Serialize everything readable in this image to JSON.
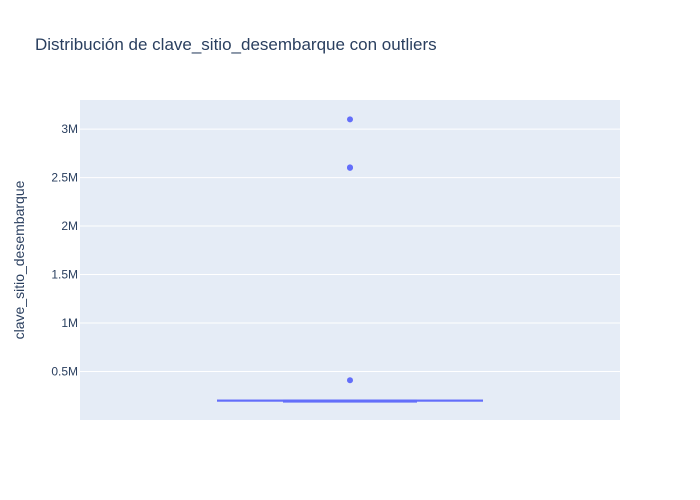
{
  "chart_data": {
    "type": "box",
    "title": "Distribución de clave_sitio_desembarque con outliers",
    "xlabel": "",
    "ylabel": "clave_sitio_desembarque",
    "ylim": [
      0,
      3300000
    ],
    "yticks": [
      {
        "value": 500000,
        "label": "0.5M"
      },
      {
        "value": 1000000,
        "label": "1M"
      },
      {
        "value": 1500000,
        "label": "1.5M"
      },
      {
        "value": 2000000,
        "label": "2M"
      },
      {
        "value": 2500000,
        "label": "2.5M"
      },
      {
        "value": 3000000,
        "label": "3M"
      }
    ],
    "grid": true,
    "legend": "none",
    "box": {
      "min": 200000,
      "q1": 200000,
      "median": 200000,
      "q3": 200000,
      "max": 200000
    },
    "outliers": [
      410000,
      2600000,
      2605000,
      3100000
    ],
    "colors": {
      "box": "#636efa",
      "plot_bg": "#e5ecf6",
      "grid": "#ffffff",
      "text": "#2a3f5f"
    }
  }
}
